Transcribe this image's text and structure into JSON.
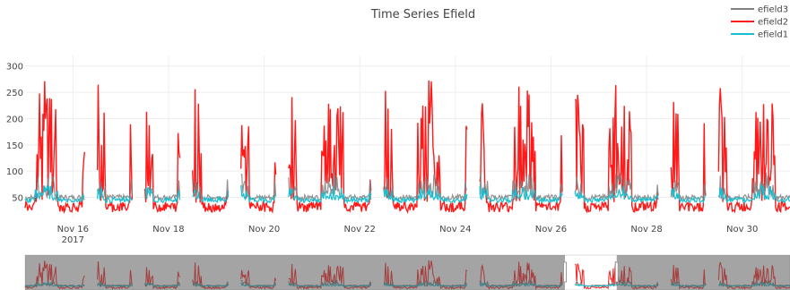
{
  "chart_data": {
    "type": "line",
    "title": "Time Series Efield",
    "xlabel": "",
    "ylabel": "",
    "x_range": [
      "2017-11-15",
      "2017-12-01"
    ],
    "ylim": [
      10,
      320
    ],
    "y_ticks": [
      50,
      100,
      150,
      200,
      250,
      300
    ],
    "x_ticks": [
      {
        "label": "Nov 16",
        "sub": "2017",
        "date": "2017-11-16"
      },
      {
        "label": "Nov 18",
        "sub": "",
        "date": "2017-11-18"
      },
      {
        "label": "Nov 20",
        "sub": "",
        "date": "2017-11-20"
      },
      {
        "label": "Nov 22",
        "sub": "",
        "date": "2017-11-22"
      },
      {
        "label": "Nov 24",
        "sub": "",
        "date": "2017-11-24"
      },
      {
        "label": "Nov 26",
        "sub": "",
        "date": "2017-11-26"
      },
      {
        "label": "Nov 28",
        "sub": "",
        "date": "2017-11-28"
      },
      {
        "label": "Nov 30",
        "sub": "",
        "date": "2017-11-30"
      }
    ],
    "grid": true,
    "legend_position": "top-right",
    "series": [
      {
        "name": "efield3",
        "color": "#7f7f7f",
        "baseline": 50,
        "spike_max": 100
      },
      {
        "name": "efield2",
        "color": "#ff1a1a",
        "baseline": 40,
        "spike_max": 290
      },
      {
        "name": "efield1",
        "color": "#17becf",
        "baseline": 45,
        "spike_max": 75
      }
    ],
    "day_gaps": [
      [
        "2017-11-16T06:00",
        "2017-11-16T12:00"
      ],
      [
        "2017-11-17T06:00",
        "2017-11-17T12:00"
      ],
      [
        "2017-11-18T06:00",
        "2017-11-18T12:00"
      ],
      [
        "2017-11-19T06:00",
        "2017-11-19T12:00"
      ],
      [
        "2017-11-20T06:00",
        "2017-11-20T12:00"
      ],
      [
        "2017-11-22T06:00",
        "2017-11-22T12:00"
      ],
      [
        "2017-11-24T06:00",
        "2017-11-24T12:00"
      ],
      [
        "2017-11-26T06:00",
        "2017-11-26T12:00"
      ],
      [
        "2017-11-28T06:00",
        "2017-11-28T12:00"
      ],
      [
        "2017-11-29T06:00",
        "2017-11-29T12:00"
      ]
    ],
    "range_slider": {
      "visible": true,
      "selected_range": [
        "2017-11-26T07:00",
        "2017-11-27T09:00"
      ]
    }
  }
}
